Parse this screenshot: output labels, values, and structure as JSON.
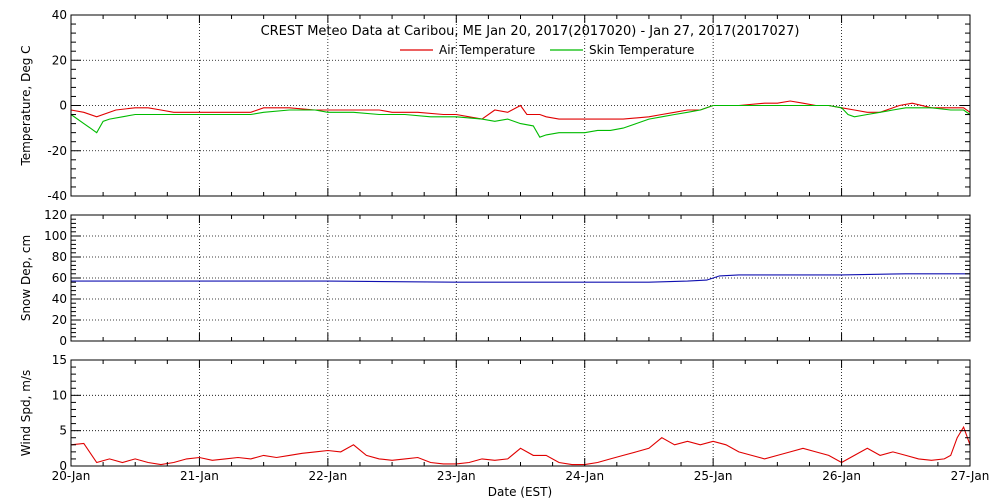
{
  "chart_data": {
    "title": "CREST Meteo Data at Caribou, ME   Jan 20, 2017(2017020) - Jan 27, 2017(2017027)",
    "xlabel": "Date (EST)",
    "x_tick_labels": [
      "20-Jan",
      "21-Jan",
      "22-Jan",
      "23-Jan",
      "24-Jan",
      "25-Jan",
      "26-Jan",
      "27-Jan"
    ],
    "xlim_days": [
      0,
      7
    ],
    "panels": [
      {
        "type": "line",
        "ylabel": "Temperature, Deg C",
        "ylim": [
          -40,
          40
        ],
        "y_ticks": [
          -40,
          -20,
          0,
          20,
          40
        ],
        "legend_position": "top-center",
        "series": [
          {
            "name": "Air Temperature",
            "color": "#e00000",
            "x": [
              0,
              0.1,
              0.2,
              0.35,
              0.5,
              0.6,
              0.7,
              0.8,
              0.9,
              1.0,
              1.2,
              1.4,
              1.5,
              1.7,
              1.9,
              2.0,
              2.2,
              2.4,
              2.5,
              2.7,
              2.9,
              3.0,
              3.1,
              3.2,
              3.3,
              3.4,
              3.5,
              3.55,
              3.65,
              3.7,
              3.8,
              3.9,
              4.0,
              4.1,
              4.3,
              4.5,
              4.6,
              4.7,
              4.8,
              4.9,
              5.0,
              5.2,
              5.4,
              5.5,
              5.6,
              5.7,
              5.8,
              5.9,
              6.0,
              6.1,
              6.2,
              6.3,
              6.45,
              6.55,
              6.7,
              6.85,
              6.95,
              7.0
            ],
            "values": [
              -2,
              -3,
              -5,
              -2,
              -1,
              -1,
              -2,
              -3,
              -3,
              -3,
              -3,
              -3,
              -1,
              -1,
              -2,
              -2,
              -2,
              -2,
              -3,
              -3,
              -4,
              -4,
              -5,
              -6,
              -2,
              -3,
              0,
              -4,
              -4,
              -5,
              -6,
              -6,
              -6,
              -6,
              -6,
              -5,
              -4,
              -3,
              -2,
              -2,
              0,
              0,
              1,
              1,
              2,
              1,
              0,
              0,
              -1,
              -2,
              -3,
              -3,
              0,
              1,
              -1,
              -1,
              -1,
              -3
            ]
          },
          {
            "name": "Skin Temperature",
            "color": "#00bb00",
            "x": [
              0,
              0.1,
              0.15,
              0.2,
              0.25,
              0.3,
              0.4,
              0.5,
              0.6,
              0.7,
              0.8,
              0.9,
              1.0,
              1.2,
              1.4,
              1.5,
              1.7,
              1.9,
              2.0,
              2.2,
              2.4,
              2.6,
              2.8,
              3.0,
              3.2,
              3.3,
              3.4,
              3.5,
              3.6,
              3.65,
              3.7,
              3.8,
              3.9,
              4.0,
              4.1,
              4.2,
              4.3,
              4.4,
              4.5,
              4.6,
              4.7,
              4.8,
              4.9,
              5.0,
              5.2,
              5.4,
              5.5,
              5.7,
              5.9,
              6.0,
              6.05,
              6.1,
              6.2,
              6.3,
              6.4,
              6.5,
              6.7,
              6.85,
              6.95,
              7.0
            ],
            "values": [
              -4,
              -8,
              -10,
              -12,
              -7,
              -6,
              -5,
              -4,
              -4,
              -4,
              -4,
              -4,
              -4,
              -4,
              -4,
              -3,
              -2,
              -2,
              -3,
              -3,
              -4,
              -4,
              -5,
              -5,
              -6,
              -7,
              -6,
              -8,
              -9,
              -14,
              -13,
              -12,
              -12,
              -12,
              -11,
              -11,
              -10,
              -8,
              -6,
              -5,
              -4,
              -3,
              -2,
              0,
              0,
              0,
              0,
              0,
              0,
              -1,
              -4,
              -5,
              -4,
              -3,
              -2,
              -1,
              -1,
              -2,
              -2,
              -4
            ]
          }
        ]
      },
      {
        "type": "line",
        "ylabel": "Snow Dep, cm",
        "ylim": [
          0,
          120
        ],
        "y_ticks": [
          0,
          20,
          40,
          60,
          80,
          100,
          120
        ],
        "series": [
          {
            "name": "",
            "color": "#1010b0",
            "x": [
              0,
              0.5,
              1.0,
              2.0,
              3.0,
              3.5,
              4.0,
              4.5,
              4.8,
              4.95,
              5.05,
              5.2,
              5.5,
              6.0,
              6.5,
              7.0
            ],
            "values": [
              57,
              57,
              57,
              57,
              56,
              56,
              56,
              56,
              57,
              58,
              62,
              63,
              63,
              63,
              64,
              64
            ]
          }
        ]
      },
      {
        "type": "line",
        "ylabel": "Wind Spd, m/s",
        "ylim": [
          0,
          15
        ],
        "y_ticks": [
          0,
          5,
          10,
          15
        ],
        "series": [
          {
            "name": "",
            "color": "#e00000",
            "x": [
              0,
              0.1,
              0.2,
              0.3,
              0.4,
              0.5,
              0.6,
              0.7,
              0.8,
              0.9,
              1.0,
              1.1,
              1.2,
              1.3,
              1.4,
              1.5,
              1.6,
              1.7,
              1.8,
              1.9,
              2.0,
              2.1,
              2.2,
              2.3,
              2.4,
              2.5,
              2.6,
              2.7,
              2.8,
              2.9,
              3.0,
              3.1,
              3.2,
              3.3,
              3.4,
              3.5,
              3.6,
              3.7,
              3.8,
              3.9,
              4.0,
              4.1,
              4.2,
              4.3,
              4.4,
              4.5,
              4.6,
              4.7,
              4.8,
              4.9,
              5.0,
              5.1,
              5.2,
              5.3,
              5.4,
              5.5,
              5.6,
              5.7,
              5.8,
              5.9,
              6.0,
              6.1,
              6.2,
              6.3,
              6.4,
              6.5,
              6.6,
              6.7,
              6.8,
              6.85,
              6.9,
              6.95,
              7.0
            ],
            "values": [
              3,
              3.2,
              0.5,
              1,
              0.5,
              1,
              0.5,
              0.2,
              0.5,
              1,
              1.2,
              0.8,
              1,
              1.2,
              1,
              1.5,
              1.2,
              1.5,
              1.8,
              2,
              2.2,
              2,
              3,
              1.5,
              1,
              0.8,
              1,
              1.2,
              0.5,
              0.3,
              0.3,
              0.5,
              1,
              0.8,
              1,
              2.5,
              1.5,
              1.5,
              0.5,
              0.2,
              0.2,
              0.5,
              1,
              1.5,
              2,
              2.5,
              4,
              3,
              3.5,
              3,
              3.5,
              3,
              2,
              1.5,
              1,
              1.5,
              2,
              2.5,
              2,
              1.5,
              0.5,
              1.5,
              2.5,
              1.5,
              2,
              1.5,
              1,
              0.8,
              1,
              1.5,
              4,
              5.5,
              3
            ]
          }
        ]
      }
    ]
  }
}
